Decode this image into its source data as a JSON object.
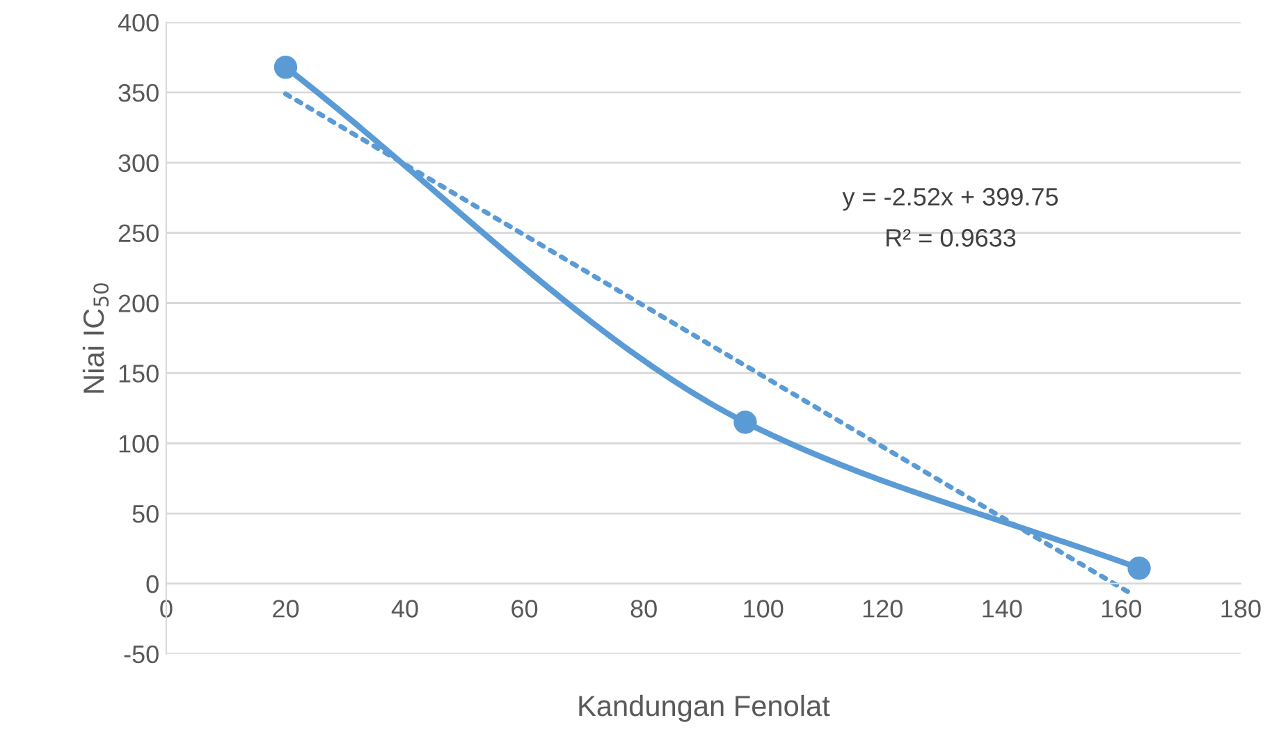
{
  "chart_data": {
    "type": "line",
    "xlabel": "Kandungan Fenolat",
    "ylabel": "Niai IC$_{50}$",
    "series": [
      {
        "color": "#5b9bd5",
        "x": [
          20,
          97,
          163
        ],
        "values": [
          368,
          115,
          11
        ],
        "marker": "circle",
        "line_style": "solid"
      },
      {
        "type": "line",
        "color": "#5b9bd5",
        "x": [
          20,
          162
        ],
        "values": [
          349,
          -8
        ],
        "marker": "none",
        "line_style": "dotted"
      }
    ],
    "annotations": [
      "y = -2.52x + 399.75",
      "R² = 0.9633"
    ],
    "xlim": [
      0,
      180
    ],
    "xticks": [
      0,
      20,
      40,
      60,
      80,
      100,
      120,
      140,
      160,
      180
    ],
    "ylim": [
      -50,
      400
    ],
    "yticks": [
      -50,
      0,
      50,
      100,
      150,
      200,
      250,
      300,
      350,
      400
    ],
    "grid": "y"
  }
}
